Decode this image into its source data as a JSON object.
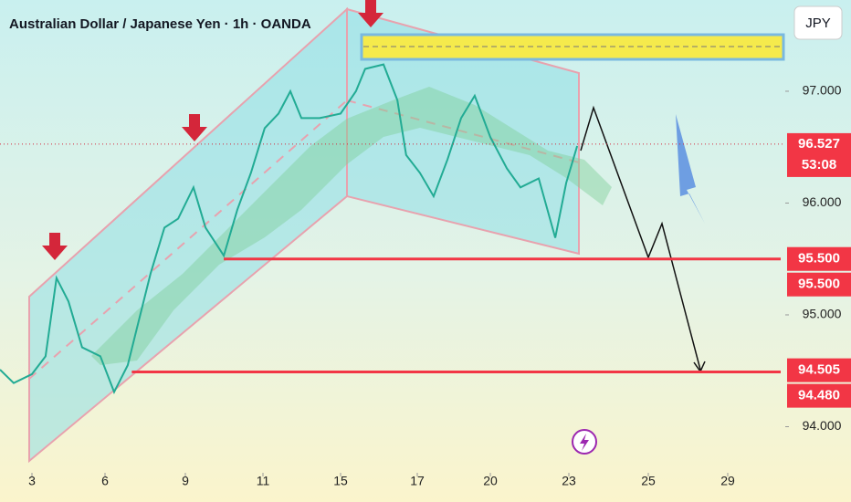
{
  "chart_data": {
    "type": "line",
    "title": "Australian Dollar / Japanese Yen · 1h · OANDA",
    "currency_button": "JPY",
    "x": [
      1.69,
      2.25,
      3.0,
      3.56,
      4.01,
      4.5,
      5.06,
      5.81,
      6.34,
      6.85,
      7.19,
      7.7,
      8.22,
      8.73,
      9.21,
      9.52,
      9.99,
      10.34,
      10.69,
      11.09,
      11.8,
      12.41,
      12.98,
      13.92,
      15.0,
      15.4,
      15.64,
      16.12,
      16.48,
      16.71,
      17.11,
      17.67,
      18.24,
      18.8,
      19.36,
      20.0,
      20.63,
      21.15,
      21.85,
      22.48,
      22.9,
      23.21
    ],
    "series": [
      {
        "color": "#22ab94",
        "values": [
          94.51,
          94.39,
          94.47,
          94.63,
          95.33,
          95.12,
          94.71,
          94.63,
          94.31,
          94.55,
          94.88,
          95.37,
          95.78,
          95.86,
          96.14,
          95.78,
          95.53,
          95.94,
          96.27,
          96.67,
          96.8,
          97.0,
          96.76,
          96.76,
          96.8,
          97.0,
          97.2,
          97.24,
          96.92,
          96.43,
          96.27,
          96.06,
          96.39,
          96.76,
          96.96,
          96.59,
          96.31,
          96.14,
          96.22,
          95.69,
          96.18,
          96.51
        ]
      }
    ],
    "xlim": [
      1.69,
      31.9
    ],
    "xticks": [
      3,
      6,
      9,
      11,
      15,
      17,
      20,
      23,
      25,
      29
    ],
    "ylim": [
      93.653,
      97.816
    ],
    "yticks": [
      {
        "value": 97,
        "label": "97.000"
      },
      {
        "value": 96,
        "label": "96.000"
      },
      {
        "value": 95,
        "label": "95.000"
      },
      {
        "value": 94,
        "label": "94.000"
      }
    ],
    "current_price": {
      "value": 96.527,
      "label": "96.527",
      "countdown": "53:08"
    },
    "horizontal_lines": [
      {
        "value": 95.5,
        "x_start": 9.99,
        "color": "#f23645"
      },
      {
        "value": 94.49,
        "x_start": 7.0,
        "color": "#f23645"
      }
    ],
    "price_labels": [
      {
        "value": 95.5,
        "label": "95.500"
      },
      {
        "value": 95.5,
        "label": "95.500"
      },
      {
        "value": 94.505,
        "label": "94.505"
      },
      {
        "value": 94.48,
        "label": "94.480"
      }
    ]
  }
}
